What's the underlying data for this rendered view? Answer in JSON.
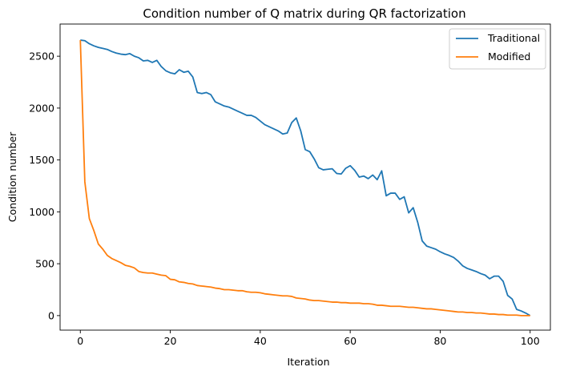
{
  "chart_data": {
    "type": "line",
    "title": "Condition number of Q matrix during QR factorization",
    "xlabel": "Iteration",
    "ylabel": "Condition number",
    "xlim": [
      -4.5,
      104.5
    ],
    "ylim": [
      -140,
      2810
    ],
    "xticks": [
      0,
      20,
      40,
      60,
      80,
      100
    ],
    "yticks": [
      0,
      500,
      1000,
      1500,
      2000,
      2500
    ],
    "grid": false,
    "legend_position": "top-right",
    "series": [
      {
        "name": "Traditional",
        "color": "#1f77b4",
        "x": [
          0,
          1,
          2,
          3,
          4,
          5,
          6,
          7,
          8,
          9,
          10,
          11,
          12,
          13,
          14,
          15,
          16,
          17,
          18,
          19,
          20,
          21,
          22,
          23,
          24,
          25,
          26,
          27,
          28,
          29,
          30,
          31,
          32,
          33,
          34,
          35,
          36,
          37,
          38,
          39,
          40,
          41,
          42,
          43,
          44,
          45,
          46,
          47,
          48,
          49,
          50,
          51,
          52,
          53,
          54,
          55,
          56,
          57,
          58,
          59,
          60,
          61,
          62,
          63,
          64,
          65,
          66,
          67,
          68,
          69,
          70,
          71,
          72,
          73,
          74,
          75,
          76,
          77,
          78,
          79,
          80,
          81,
          82,
          83,
          84,
          85,
          86,
          87,
          88,
          89,
          90,
          91,
          92,
          93,
          94,
          95,
          96,
          97,
          98,
          99,
          100
        ],
        "values": [
          2655,
          2650,
          2620,
          2600,
          2585,
          2575,
          2565,
          2545,
          2530,
          2520,
          2515,
          2525,
          2500,
          2485,
          2455,
          2460,
          2440,
          2460,
          2400,
          2360,
          2340,
          2330,
          2370,
          2345,
          2355,
          2300,
          2150,
          2140,
          2150,
          2130,
          2060,
          2040,
          2020,
          2010,
          1990,
          1970,
          1950,
          1930,
          1930,
          1910,
          1875,
          1840,
          1820,
          1800,
          1780,
          1750,
          1760,
          1860,
          1905,
          1780,
          1600,
          1580,
          1510,
          1425,
          1405,
          1410,
          1415,
          1370,
          1365,
          1420,
          1445,
          1400,
          1335,
          1345,
          1320,
          1355,
          1310,
          1395,
          1155,
          1180,
          1180,
          1120,
          1145,
          990,
          1040,
          900,
          720,
          670,
          655,
          640,
          615,
          595,
          580,
          560,
          525,
          480,
          455,
          440,
          425,
          405,
          390,
          355,
          380,
          380,
          330,
          195,
          160,
          60,
          45,
          25,
          0
        ]
      },
      {
        "name": "Modified",
        "color": "#ff7f0e",
        "x": [
          0,
          1,
          2,
          3,
          4,
          5,
          6,
          7,
          8,
          9,
          10,
          11,
          12,
          13,
          14,
          15,
          16,
          17,
          18,
          19,
          20,
          21,
          22,
          23,
          24,
          25,
          26,
          27,
          28,
          29,
          30,
          31,
          32,
          33,
          34,
          35,
          36,
          37,
          38,
          39,
          40,
          41,
          42,
          43,
          44,
          45,
          46,
          47,
          48,
          49,
          50,
          51,
          52,
          53,
          54,
          55,
          56,
          57,
          58,
          59,
          60,
          61,
          62,
          63,
          64,
          65,
          66,
          67,
          68,
          69,
          70,
          71,
          72,
          73,
          74,
          75,
          76,
          77,
          78,
          79,
          80,
          81,
          82,
          83,
          84,
          85,
          86,
          87,
          88,
          89,
          90,
          91,
          92,
          93,
          94,
          95,
          96,
          97,
          98,
          99,
          100
        ],
        "values": [
          2655,
          1290,
          935,
          820,
          690,
          640,
          580,
          550,
          530,
          510,
          485,
          475,
          460,
          425,
          415,
          410,
          410,
          400,
          390,
          385,
          350,
          345,
          325,
          320,
          310,
          305,
          290,
          285,
          280,
          275,
          265,
          260,
          250,
          250,
          245,
          240,
          240,
          230,
          225,
          225,
          220,
          210,
          205,
          200,
          195,
          190,
          190,
          185,
          170,
          165,
          160,
          150,
          145,
          145,
          140,
          135,
          130,
          130,
          125,
          125,
          120,
          120,
          120,
          115,
          115,
          110,
          100,
          100,
          95,
          90,
          90,
          90,
          85,
          80,
          80,
          75,
          70,
          65,
          65,
          60,
          55,
          50,
          45,
          40,
          35,
          35,
          30,
          30,
          25,
          25,
          20,
          15,
          15,
          10,
          10,
          5,
          5,
          5,
          0,
          0,
          0
        ]
      }
    ]
  }
}
